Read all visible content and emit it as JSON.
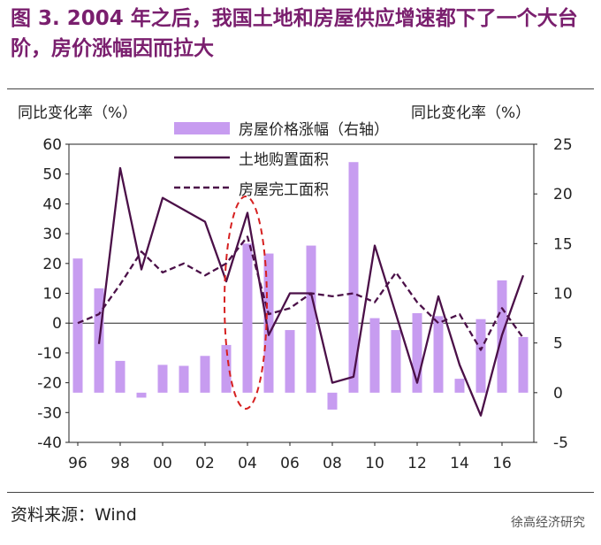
{
  "title": "图 3.   2004 年之后，我国土地和房屋供应增速都下了一个大台阶，房价涨幅因而拉大",
  "source": "资料来源：Wind",
  "watermark": "徐高经济研究",
  "colors": {
    "title": "#7a1f6e",
    "bars": "#c79cf0",
    "line": "#4b1048",
    "ellipse": "#d62020"
  },
  "chart_data": {
    "type": "bar+line",
    "ylabel_left": "同比变化率（%）",
    "ylabel_right": "同比变化率（%）",
    "left_ylim": [
      -40,
      60
    ],
    "left_ticks": [
      "60",
      "50",
      "40",
      "30",
      "20",
      "10",
      "0",
      "-10",
      "-20",
      "-30",
      "-40"
    ],
    "right_ylim": [
      -5,
      25
    ],
    "right_ticks": [
      "25",
      "20",
      "15",
      "10",
      "5",
      "0",
      "-5"
    ],
    "x_ticks": [
      "96",
      "98",
      "00",
      "02",
      "04",
      "06",
      "08",
      "10",
      "12",
      "14",
      "16"
    ],
    "legend": [
      "房屋价格涨幅（右轴）",
      "土地购置面积",
      "房屋完工面积"
    ],
    "bar_series": {
      "name": "房屋价格涨幅（右轴）",
      "axis": "right",
      "x": [
        1996,
        1997,
        1998,
        1999,
        2000,
        2001,
        2002,
        2003,
        2004,
        2005,
        2006,
        2007,
        2008,
        2009,
        2010,
        2011,
        2012,
        2013,
        2014,
        2015,
        2016,
        2017
      ],
      "values": [
        13.5,
        10.5,
        3.2,
        -0.5,
        2.8,
        2.7,
        3.7,
        4.8,
        15.0,
        14.0,
        6.3,
        14.8,
        -1.7,
        23.2,
        7.5,
        6.3,
        8.0,
        7.7,
        1.4,
        7.4,
        11.3,
        5.6
      ]
    },
    "land_series": {
      "name": "土地购置面积",
      "x": [
        1997,
        1998,
        1999,
        2000,
        2001,
        2002,
        2003,
        2004,
        2005,
        2006,
        2007,
        2008,
        2009,
        2010,
        2011,
        2012,
        2013,
        2014,
        2015,
        2016,
        2017
      ],
      "values": [
        -7,
        52,
        18,
        42,
        38,
        34,
        14,
        37,
        -4,
        10,
        10,
        -20,
        -18,
        26,
        3,
        -20,
        9,
        -14,
        -31,
        -4,
        16
      ]
    },
    "completed_series": {
      "name": "房屋完工面积",
      "x": [
        1996,
        1997,
        1998,
        1999,
        2000,
        2001,
        2002,
        2003,
        2004,
        2005,
        2006,
        2007,
        2008,
        2009,
        2010,
        2011,
        2012,
        2013,
        2014,
        2015,
        2016,
        2017
      ],
      "values": [
        0,
        3,
        13,
        24,
        17,
        20,
        16,
        20,
        29,
        3,
        5,
        10,
        9,
        10,
        7,
        17,
        7,
        0,
        3,
        -9,
        5,
        -5
      ]
    },
    "annotation": "dashed red ellipse highlighting 2004"
  }
}
